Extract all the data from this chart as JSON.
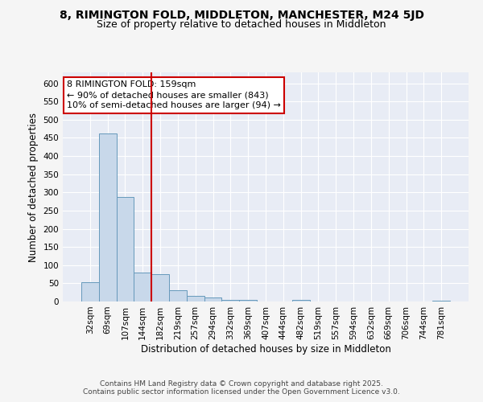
{
  "title_line1": "8, RIMINGTON FOLD, MIDDLETON, MANCHESTER, M24 5JD",
  "title_line2": "Size of property relative to detached houses in Middleton",
  "xlabel": "Distribution of detached houses by size in Middleton",
  "ylabel": "Number of detached properties",
  "categories": [
    "32sqm",
    "69sqm",
    "107sqm",
    "144sqm",
    "182sqm",
    "219sqm",
    "257sqm",
    "294sqm",
    "332sqm",
    "369sqm",
    "407sqm",
    "444sqm",
    "482sqm",
    "519sqm",
    "557sqm",
    "594sqm",
    "632sqm",
    "669sqm",
    "706sqm",
    "744sqm",
    "781sqm"
  ],
  "values": [
    53,
    463,
    288,
    80,
    75,
    31,
    16,
    10,
    5,
    4,
    0,
    0,
    5,
    0,
    0,
    0,
    0,
    0,
    0,
    0,
    3
  ],
  "bar_color": "#c8d8ea",
  "bar_edge_color": "#6699bb",
  "vline_x": 3.5,
  "vline_color": "#cc0000",
  "annotation_text": "8 RIMINGTON FOLD: 159sqm\n← 90% of detached houses are smaller (843)\n10% of semi-detached houses are larger (94) →",
  "annotation_box_color": "#ffffff",
  "annotation_box_edge": "#cc0000",
  "ylim": [
    0,
    630
  ],
  "yticks": [
    0,
    50,
    100,
    150,
    200,
    250,
    300,
    350,
    400,
    450,
    500,
    550,
    600
  ],
  "plot_bg_color": "#e8ecf5",
  "fig_bg_color": "#f5f5f5",
  "grid_color": "#ffffff",
  "footer_text": "Contains HM Land Registry data © Crown copyright and database right 2025.\nContains public sector information licensed under the Open Government Licence v3.0.",
  "title_fontsize": 10,
  "subtitle_fontsize": 9,
  "axis_label_fontsize": 8.5,
  "tick_fontsize": 7.5,
  "annotation_fontsize": 8,
  "footer_fontsize": 6.5
}
